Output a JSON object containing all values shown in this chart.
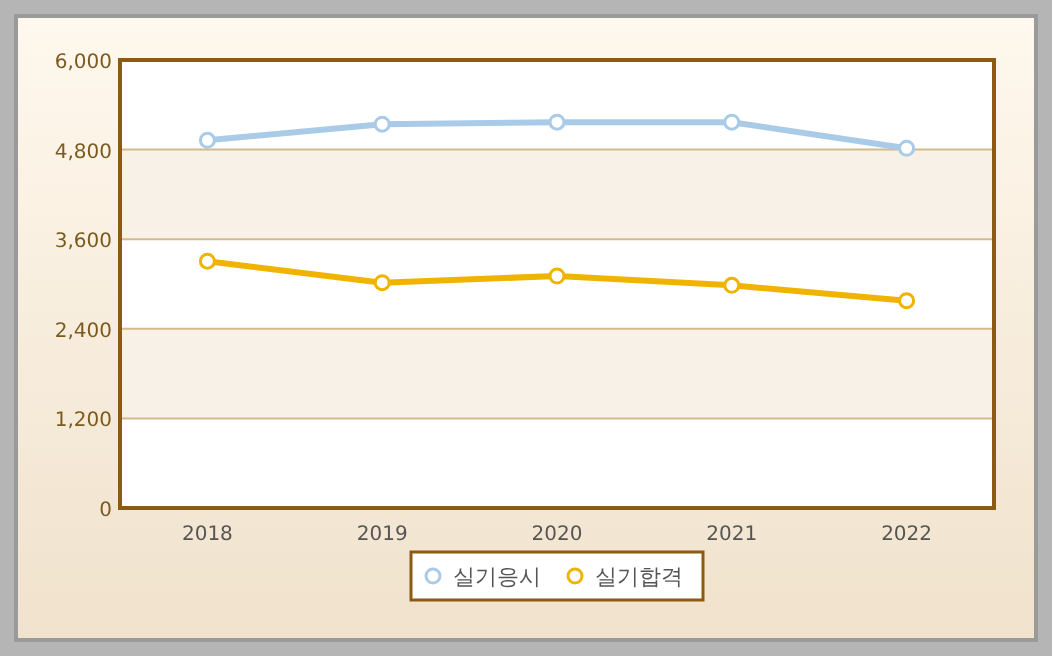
{
  "chart_data": {
    "type": "line",
    "categories": [
      "2018",
      "2019",
      "2020",
      "2021",
      "2022"
    ],
    "series": [
      {
        "name": "실기응시",
        "color": "#a9cbe8",
        "values": [
          4925,
          5140,
          5167,
          5167,
          4818
        ]
      },
      {
        "name": "실기합격",
        "color": "#f0b400",
        "values": [
          3305,
          3018,
          3107,
          2982,
          2776
        ]
      }
    ],
    "ylim": [
      0,
      6000
    ],
    "yticks": [
      {
        "value": 0,
        "label": "0"
      },
      {
        "value": 1200,
        "label": "1,200"
      },
      {
        "value": 2400,
        "label": "2,400"
      },
      {
        "value": 3600,
        "label": "3,600"
      },
      {
        "value": 4800,
        "label": "4,800"
      },
      {
        "value": 6000,
        "label": "6,000"
      }
    ],
    "grid": "y",
    "legend": "bottom",
    "marker": "circle",
    "line_style": "solid"
  }
}
